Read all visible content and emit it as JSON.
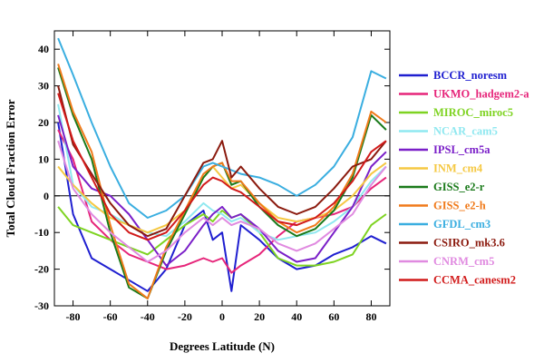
{
  "chart_data": {
    "type": "line",
    "title": "",
    "xlabel": "Degrees Latitude (N)",
    "ylabel": "Total Cloud Fraction Error",
    "xlim": [
      -90,
      90
    ],
    "ylim": [
      -30,
      45
    ],
    "xticks": [
      -80,
      -60,
      -40,
      -20,
      0,
      20,
      40,
      60,
      80
    ],
    "yticks": [
      -30,
      -20,
      -10,
      0,
      10,
      20,
      30,
      40
    ],
    "x_tick_labels": [
      "-80",
      "-60",
      "-40",
      "-20",
      "0",
      "20",
      "40",
      "60",
      "80"
    ],
    "y_tick_labels": [
      "-30",
      "-20",
      "-10",
      "0",
      "10",
      "20",
      "30",
      "40"
    ],
    "zero_line": true,
    "grid": false,
    "legend_position": "right",
    "x": [
      -88,
      -80,
      -70,
      -60,
      -50,
      -40,
      -30,
      -20,
      -10,
      -5,
      0,
      5,
      10,
      20,
      30,
      40,
      50,
      60,
      70,
      80,
      88
    ],
    "series": [
      {
        "name": "BCCR_noresm",
        "color": "#1f1fd0",
        "values": [
          20,
          -5,
          -17,
          -20,
          -23,
          -26,
          -20,
          -8,
          -4,
          -12,
          -10,
          -26,
          -8,
          -12,
          -17,
          -20,
          -19,
          -16,
          -14,
          -11,
          -13
        ]
      },
      {
        "name": "UKMO_hadgem2-a",
        "color": "#e6257a",
        "values": [
          18,
          10,
          -7,
          -12,
          -16,
          -18,
          -20,
          -19,
          -17,
          -18,
          -17,
          -21,
          -19,
          -16,
          -11,
          -7,
          -6,
          -5,
          -3,
          2,
          5
        ]
      },
      {
        "name": "MIROC_miroc5",
        "color": "#7ed321",
        "values": [
          -3,
          -8,
          -10,
          -12,
          -14,
          -16,
          -12,
          -8,
          -5,
          -7,
          -4,
          -6,
          -5,
          -10,
          -17,
          -19,
          -19,
          -18,
          -16,
          -8,
          -5
        ]
      },
      {
        "name": "NCAR_cam5",
        "color": "#8fe8f0",
        "values": [
          25,
          3,
          -3,
          -5,
          -8,
          -10,
          -11,
          -7,
          -2,
          -4,
          -5,
          -7,
          -6,
          -10,
          -12,
          -11,
          -10,
          -7,
          -3,
          4,
          8
        ]
      },
      {
        "name": "IPSL_cm5a",
        "color": "#7a1fc8",
        "values": [
          22,
          8,
          2,
          0,
          -5,
          -12,
          -19,
          -15,
          -8,
          -5,
          -3,
          -6,
          -5,
          -9,
          -15,
          -18,
          -17,
          -10,
          -3,
          8,
          12
        ]
      },
      {
        "name": "INM_cm4",
        "color": "#f5c842",
        "values": [
          8,
          3,
          -2,
          -6,
          -8,
          -10,
          -8,
          -4,
          5,
          8,
          5,
          2,
          3,
          -2,
          -6,
          -7,
          -6,
          -4,
          0,
          6,
          9
        ]
      },
      {
        "name": "GISS_e2-r",
        "color": "#1a7a1a",
        "values": [
          35,
          22,
          10,
          -10,
          -25,
          -28,
          -15,
          -5,
          5,
          8,
          9,
          3,
          4,
          -3,
          -8,
          -11,
          -9,
          -4,
          5,
          22,
          18
        ]
      },
      {
        "name": "GISS_e2-h",
        "color": "#f07a1a",
        "values": [
          36,
          23,
          12,
          -8,
          -24,
          -28,
          -14,
          -4,
          6,
          8,
          9,
          4,
          4,
          -2,
          -7,
          -10,
          -8,
          -3,
          6,
          23,
          20
        ]
      },
      {
        "name": "GFDL_cm3",
        "color": "#3aaee0",
        "values": [
          43,
          33,
          20,
          8,
          -2,
          -6,
          -4,
          0,
          8,
          9,
          8,
          7,
          6,
          5,
          3,
          0,
          3,
          8,
          16,
          34,
          32
        ]
      },
      {
        "name": "CSIRO_mk3.6",
        "color": "#8b1a0e",
        "values": [
          30,
          14,
          6,
          -2,
          -8,
          -11,
          -9,
          0,
          9,
          10,
          15,
          5,
          8,
          2,
          -3,
          -5,
          -3,
          2,
          8,
          10,
          15
        ]
      },
      {
        "name": "CNRM_cm5",
        "color": "#e08ae0",
        "values": [
          15,
          2,
          -5,
          -10,
          -14,
          -18,
          -15,
          -10,
          -6,
          -8,
          -6,
          -8,
          -7,
          -9,
          -13,
          -15,
          -13,
          -9,
          -5,
          3,
          8
        ]
      },
      {
        "name": "CCMA_canesm2",
        "color": "#d11a1a",
        "values": [
          28,
          15,
          5,
          -5,
          -10,
          -12,
          -10,
          -4,
          3,
          5,
          4,
          2,
          1,
          -3,
          -7,
          -8,
          -6,
          -2,
          4,
          12,
          15
        ]
      }
    ]
  }
}
